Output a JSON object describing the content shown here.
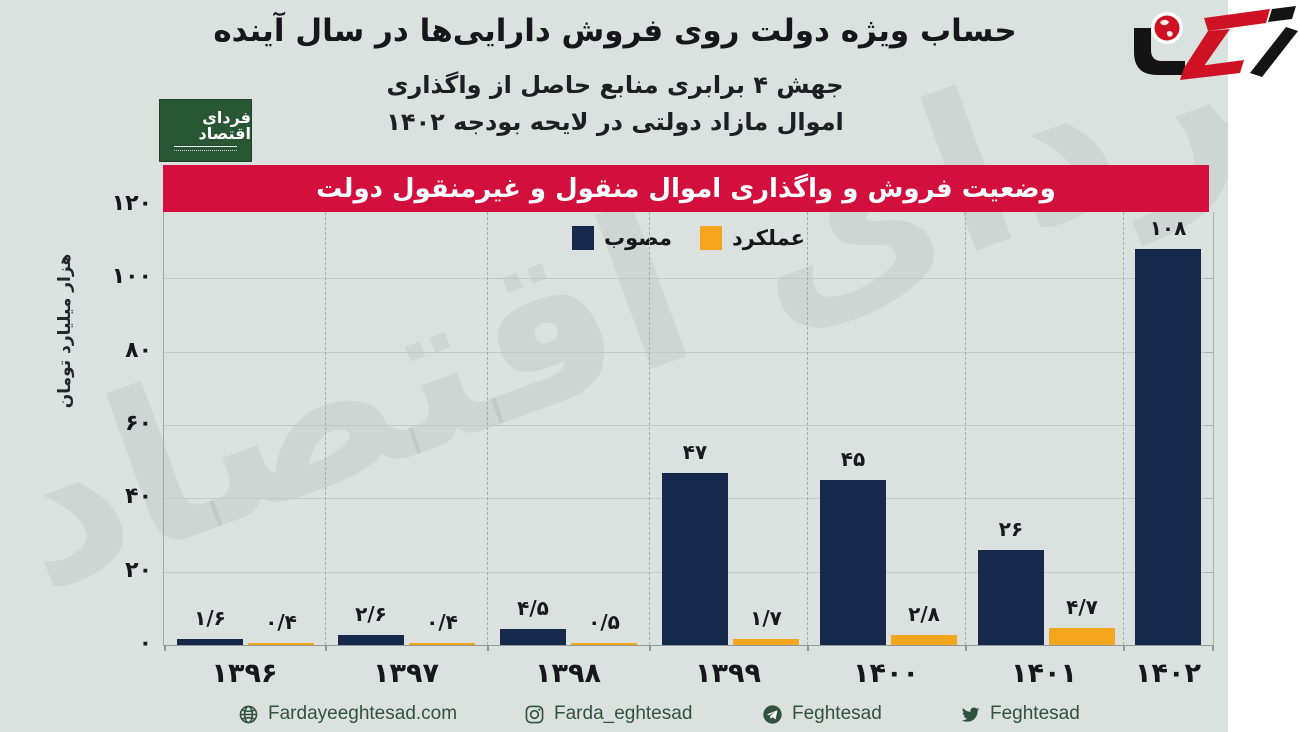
{
  "header": {
    "title": "حساب ویژه دولت روی فروش دارایی‌ها در سال آینده",
    "subtitle_line1": "جهش ۴ برابری منابع حاصل از واگذاری",
    "subtitle_line2": "اموال مازاد دولتی در لایحه بودجه ۱۴۰۲",
    "publisher_badge": "فردای اقتصاد"
  },
  "banner": {
    "text": "وضعیت فروش و واگذاری اموال منقول و غیرمنقول دولت",
    "color": "#d30f3e"
  },
  "chart_data": {
    "type": "bar",
    "title": "وضعیت فروش و واگذاری اموال منقول و غیرمنقول دولت",
    "categories": [
      "۱۳۹۶",
      "۱۳۹۷",
      "۱۳۹۸",
      "۱۳۹۹",
      "۱۴۰۰",
      "۱۴۰۱",
      "۱۴۰۲"
    ],
    "categories_western": [
      1396,
      1397,
      1398,
      1399,
      1400,
      1401,
      1402
    ],
    "series": [
      {
        "name": "مصوب",
        "color": "#16294b",
        "values": [
          1.6,
          2.6,
          4.5,
          47,
          45,
          26,
          108
        ],
        "value_labels": [
          "۱/۶",
          "۲/۶",
          "۴/۵",
          "۴۷",
          "۴۵",
          "۲۶",
          "۱۰۸"
        ]
      },
      {
        "name": "عملکرد",
        "color": "#f2a51d",
        "values": [
          0.4,
          0.4,
          0.5,
          1.7,
          2.8,
          4.7,
          null
        ],
        "value_labels": [
          "۰/۴",
          "۰/۴",
          "۰/۵",
          "۱/۷",
          "۲/۸",
          "۴/۷",
          null
        ]
      }
    ],
    "xlabel": "",
    "ylabel": "هزار میلیارد تومان",
    "ylim": [
      0,
      120
    ],
    "yticks": [
      0,
      20,
      40,
      60,
      80,
      100,
      120
    ],
    "ytick_labels": [
      "۰",
      "۲۰",
      "۴۰",
      "۶۰",
      "۸۰",
      "۱۰۰",
      "۱۲۰"
    ],
    "grid": true,
    "legend_position": "top-center"
  },
  "watermark": "فردای اقتصاد",
  "footer": {
    "items": [
      {
        "icon": "globe-icon",
        "label": "Fardayeeghtesad.com"
      },
      {
        "icon": "instagram-icon",
        "label": "Farda_eghtesad"
      },
      {
        "icon": "telegram-icon",
        "label": "Feghtesad"
      },
      {
        "icon": "twitter-icon",
        "label": "Feghtesad"
      }
    ]
  },
  "colors": {
    "background": "#dbe1de",
    "bar_approved": "#16294b",
    "bar_performance": "#f2a51d",
    "banner_red": "#d30f3e",
    "footer_green": "#31523f",
    "gridline": "#bfc9c5"
  }
}
